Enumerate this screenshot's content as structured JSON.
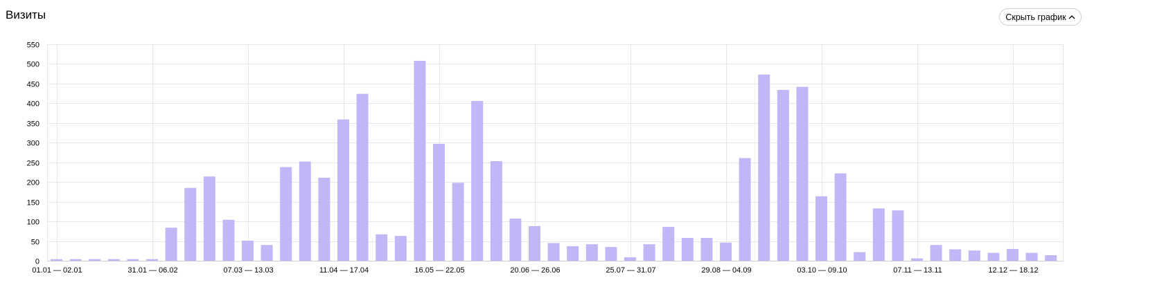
{
  "header": {
    "title": "Визиты",
    "toggle_label": "Скрыть график",
    "toggle_icon": "chevron-up-icon"
  },
  "colors": {
    "bar": "#c3b6f7",
    "grid": "#e6e6e6",
    "axis": "#cccccc"
  },
  "chart_data": {
    "type": "bar",
    "title": "",
    "xlabel": "",
    "ylabel": "",
    "ylim": [
      0,
      550
    ],
    "yticks": [
      0,
      50,
      100,
      150,
      200,
      250,
      300,
      350,
      400,
      450,
      500,
      550
    ],
    "grid": true,
    "x_tick_labels": [
      {
        "index": 0,
        "label": "01.01 — 02.01"
      },
      {
        "index": 5,
        "label": "31.01 — 06.02"
      },
      {
        "index": 10,
        "label": "07.03 — 13.03"
      },
      {
        "index": 15,
        "label": "11.04 — 17.04"
      },
      {
        "index": 20,
        "label": "16.05 — 22.05"
      },
      {
        "index": 25,
        "label": "20.06 — 26.06"
      },
      {
        "index": 30,
        "label": "25.07 — 31.07"
      },
      {
        "index": 35,
        "label": "29.08 — 04.09"
      },
      {
        "index": 40,
        "label": "03.10 — 09.10"
      },
      {
        "index": 45,
        "label": "07.11 — 13.11"
      },
      {
        "index": 50,
        "label": "12.12 — 18.12"
      }
    ],
    "values": [
      4,
      4,
      4,
      4,
      4,
      4,
      84,
      185,
      214,
      104,
      51,
      40,
      238,
      252,
      211,
      359,
      424,
      67,
      63,
      508,
      297,
      198,
      406,
      253,
      107,
      88,
      45,
      37,
      42,
      35,
      9,
      42,
      86,
      58,
      58,
      46,
      261,
      473,
      434,
      442,
      164,
      222,
      22,
      133,
      128,
      6,
      40,
      29,
      26,
      20,
      30,
      20,
      14
    ]
  }
}
